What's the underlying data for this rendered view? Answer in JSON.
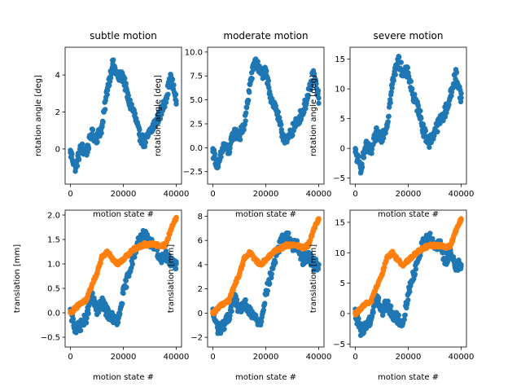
{
  "chart_data": [
    {
      "type": "scatter",
      "title": "subtle motion",
      "xlabel": "motion state #",
      "ylabel": "rotation angle [deg]",
      "xlim": [
        -2000,
        42000
      ],
      "ylim": [
        -1.9,
        5.5
      ],
      "xticks": [
        0,
        20000,
        40000
      ],
      "xtick_labels": [
        "0",
        "20000",
        "40000"
      ],
      "yticks": [
        0,
        2,
        4
      ],
      "ytick_labels": [
        "0",
        "2",
        "4"
      ],
      "grid": false,
      "series": [
        {
          "color": "#1f77b4",
          "spread": 0.6,
          "x": [
            0,
            2000,
            4000,
            6000,
            8000,
            10000,
            12000,
            14000,
            16000,
            18000,
            20000,
            22000,
            24000,
            26000,
            28000,
            30000,
            32000,
            34000,
            36000,
            38000,
            40000
          ],
          "y": [
            -0.2,
            -1.0,
            0.1,
            -0.2,
            0.8,
            0.6,
            1.2,
            3.3,
            4.6,
            3.9,
            3.9,
            2.6,
            2.0,
            0.8,
            0.3,
            0.9,
            1.4,
            1.9,
            2.7,
            3.9,
            2.6
          ]
        }
      ]
    },
    {
      "type": "scatter",
      "title": "moderate motion",
      "xlabel": "motion state #",
      "ylabel": "rotation angle [deg]",
      "xlim": [
        -2000,
        42000
      ],
      "ylim": [
        -3.8,
        10.5
      ],
      "xticks": [
        0,
        20000,
        40000
      ],
      "xtick_labels": [
        "0",
        "20000",
        "40000"
      ],
      "yticks": [
        -2.5,
        0.0,
        2.5,
        5.0,
        7.5,
        10.0
      ],
      "ytick_labels": [
        "−2.5",
        "0.0",
        "2.5",
        "5.0",
        "7.5",
        "10.0"
      ],
      "grid": false,
      "series": [
        {
          "color": "#1f77b4",
          "spread": 1.2,
          "x": [
            0,
            2000,
            4000,
            6000,
            8000,
            10000,
            12000,
            14000,
            16000,
            18000,
            20000,
            22000,
            24000,
            26000,
            28000,
            30000,
            32000,
            34000,
            36000,
            38000,
            40000
          ],
          "y": [
            -0.4,
            -2.0,
            0.2,
            -0.4,
            1.6,
            1.2,
            2.4,
            6.6,
            9.2,
            7.8,
            7.8,
            5.2,
            4.0,
            1.6,
            0.6,
            1.8,
            2.8,
            3.8,
            5.4,
            7.8,
            5.2
          ]
        }
      ]
    },
    {
      "type": "scatter",
      "title": "severe motion",
      "xlabel": "motion state #",
      "ylabel": "rotation angle [deg]",
      "xlim": [
        -2000,
        42000
      ],
      "ylim": [
        -6,
        17
      ],
      "xticks": [
        0,
        20000,
        40000
      ],
      "xtick_labels": [
        "0",
        "20000",
        "40000"
      ],
      "yticks": [
        -5,
        0,
        5,
        10,
        15
      ],
      "ytick_labels": [
        "−5",
        "0",
        "5",
        "10",
        "15"
      ],
      "grid": false,
      "series": [
        {
          "color": "#1f77b4",
          "spread": 2.0,
          "x": [
            0,
            2000,
            4000,
            6000,
            8000,
            10000,
            12000,
            14000,
            16000,
            18000,
            20000,
            22000,
            24000,
            26000,
            28000,
            30000,
            32000,
            34000,
            36000,
            38000,
            40000
          ],
          "y": [
            -0.6,
            -3.3,
            0.3,
            -0.6,
            2.6,
            2.0,
            4.0,
            10.8,
            15.0,
            12.7,
            12.7,
            8.5,
            6.5,
            2.6,
            1.0,
            2.9,
            4.6,
            6.2,
            8.8,
            12.7,
            8.5
          ]
        }
      ]
    },
    {
      "type": "scatter",
      "title": "",
      "xlabel": "motion state #",
      "ylabel": "translation [mm]",
      "xlim": [
        -2000,
        42000
      ],
      "ylim": [
        -0.7,
        2.1
      ],
      "xticks": [
        0,
        20000,
        40000
      ],
      "xtick_labels": [
        "0",
        "20000",
        "40000"
      ],
      "yticks": [
        -0.5,
        0.0,
        0.5,
        1.0,
        1.5,
        2.0
      ],
      "ytick_labels": [
        "−0.5",
        "0.0",
        "0.5",
        "1.0",
        "1.5",
        "2.0"
      ],
      "grid": false,
      "series": [
        {
          "color": "#1f77b4",
          "spread": 0.22,
          "x": [
            0,
            2000,
            4000,
            6000,
            8000,
            10000,
            12000,
            14000,
            16000,
            18000,
            20000,
            22000,
            24000,
            26000,
            28000,
            30000,
            32000,
            34000,
            36000,
            38000,
            40000
          ],
          "y": [
            0.0,
            -0.35,
            -0.25,
            -0.1,
            0.35,
            0.05,
            0.2,
            0.0,
            -0.1,
            -0.2,
            0.4,
            0.8,
            1.2,
            1.5,
            1.6,
            1.4,
            1.4,
            1.1,
            1.2,
            1.0,
            1.0
          ]
        },
        {
          "color": "#ff7f0e",
          "spread": 0.07,
          "x": [
            0,
            2000,
            4000,
            6000,
            8000,
            10000,
            12000,
            14000,
            16000,
            18000,
            20000,
            22000,
            24000,
            26000,
            28000,
            30000,
            32000,
            34000,
            36000,
            38000,
            40000
          ],
          "y": [
            0.0,
            0.1,
            0.2,
            0.25,
            0.55,
            0.8,
            1.15,
            1.25,
            1.1,
            1.0,
            1.1,
            1.2,
            1.3,
            1.35,
            1.4,
            1.4,
            1.4,
            1.35,
            1.4,
            1.7,
            1.95
          ]
        }
      ]
    },
    {
      "type": "scatter",
      "title": "",
      "xlabel": "motion state #",
      "ylabel": "translation [mm]",
      "xlim": [
        -2000,
        42000
      ],
      "ylim": [
        -2.8,
        8.5
      ],
      "xticks": [
        0,
        20000,
        40000
      ],
      "xtick_labels": [
        "0",
        "20000",
        "40000"
      ],
      "yticks": [
        -2,
        0,
        2,
        4,
        6,
        8
      ],
      "ytick_labels": [
        "−2",
        "0",
        "2",
        "4",
        "6",
        "8"
      ],
      "grid": false,
      "series": [
        {
          "color": "#1f77b4",
          "spread": 0.9,
          "x": [
            0,
            2000,
            4000,
            6000,
            8000,
            10000,
            12000,
            14000,
            16000,
            18000,
            20000,
            22000,
            24000,
            26000,
            28000,
            30000,
            32000,
            34000,
            36000,
            38000,
            40000
          ],
          "y": [
            0.0,
            -1.4,
            -1.0,
            -0.4,
            1.4,
            0.2,
            0.8,
            0.0,
            -0.4,
            -0.8,
            1.6,
            3.2,
            4.8,
            6.0,
            6.4,
            5.6,
            5.6,
            4.4,
            4.8,
            4.0,
            4.0
          ]
        },
        {
          "color": "#ff7f0e",
          "spread": 0.28,
          "x": [
            0,
            2000,
            4000,
            6000,
            8000,
            10000,
            12000,
            14000,
            16000,
            18000,
            20000,
            22000,
            24000,
            26000,
            28000,
            30000,
            32000,
            34000,
            36000,
            38000,
            40000
          ],
          "y": [
            0.0,
            0.4,
            0.8,
            1.0,
            2.2,
            3.2,
            4.6,
            5.0,
            4.4,
            4.0,
            4.4,
            4.8,
            5.2,
            5.4,
            5.6,
            5.6,
            5.6,
            5.4,
            5.6,
            6.8,
            7.8
          ]
        }
      ]
    },
    {
      "type": "scatter",
      "title": "",
      "xlabel": "motion state #",
      "ylabel": "translation [mm]",
      "xlim": [
        -2000,
        42000
      ],
      "ylim": [
        -5.5,
        17
      ],
      "xticks": [
        0,
        20000,
        40000
      ],
      "xtick_labels": [
        "0",
        "20000",
        "40000"
      ],
      "yticks": [
        -5,
        0,
        5,
        10,
        15
      ],
      "ytick_labels": [
        "−5",
        "0",
        "5",
        "10",
        "15"
      ],
      "grid": false,
      "series": [
        {
          "color": "#1f77b4",
          "spread": 1.8,
          "x": [
            0,
            2000,
            4000,
            6000,
            8000,
            10000,
            12000,
            14000,
            16000,
            18000,
            20000,
            22000,
            24000,
            26000,
            28000,
            30000,
            32000,
            34000,
            36000,
            38000,
            40000
          ],
          "y": [
            0.0,
            -2.8,
            -2.0,
            -0.8,
            2.8,
            0.4,
            1.6,
            0.0,
            -0.8,
            -1.6,
            3.2,
            6.4,
            9.6,
            12.0,
            12.8,
            11.2,
            11.2,
            8.8,
            9.6,
            8.0,
            8.0
          ]
        },
        {
          "color": "#ff7f0e",
          "spread": 0.55,
          "x": [
            0,
            2000,
            4000,
            6000,
            8000,
            10000,
            12000,
            14000,
            16000,
            18000,
            20000,
            22000,
            24000,
            26000,
            28000,
            30000,
            32000,
            34000,
            36000,
            38000,
            40000
          ],
          "y": [
            0.0,
            0.8,
            1.6,
            2.0,
            4.4,
            6.4,
            9.2,
            10.0,
            8.8,
            8.0,
            8.8,
            9.6,
            10.4,
            10.8,
            11.2,
            11.2,
            11.2,
            10.8,
            11.2,
            13.6,
            15.6
          ]
        }
      ]
    }
  ]
}
